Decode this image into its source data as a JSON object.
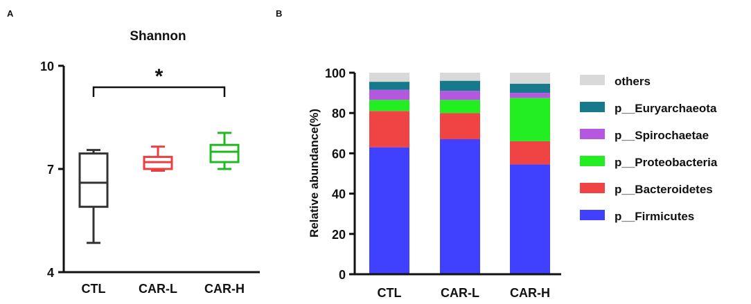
{
  "chart_data": [
    {
      "panel_label": "A",
      "type": "box",
      "title": "Shannon",
      "ylim": [
        4,
        10
      ],
      "y_ticks": [
        "4",
        "7",
        "10"
      ],
      "categories": [
        "CTL",
        "CAR-L",
        "CAR-H"
      ],
      "colors": [
        "#333333",
        "#e84040",
        "#22b822"
      ],
      "boxes": [
        {
          "min": 4.85,
          "q1": 5.9,
          "median": 6.6,
          "q3": 7.45,
          "max": 7.55
        },
        {
          "min": 6.95,
          "q1": 7.0,
          "median": 7.2,
          "q3": 7.35,
          "max": 7.65
        },
        {
          "min": 7.0,
          "q1": 7.2,
          "median": 7.5,
          "q3": 7.7,
          "max": 8.05
        }
      ],
      "significance": {
        "from": "CTL",
        "to": "CAR-H",
        "label": "*"
      }
    },
    {
      "panel_label": "B",
      "type": "stacked-bar",
      "ylabel": "Relative abundance(%)",
      "ylim": [
        0,
        100
      ],
      "y_ticks": [
        "0",
        "20",
        "40",
        "60",
        "80",
        "100"
      ],
      "categories": [
        "CTL",
        "CAR-L",
        "CAR-H"
      ],
      "series": [
        {
          "name": "p__Firmicutes",
          "color": "#4040ff",
          "values": [
            63,
            67,
            54.5
          ]
        },
        {
          "name": "p__Bacteroidetes",
          "color": "#f04444",
          "values": [
            18,
            13,
            11.5
          ]
        },
        {
          "name": "p__Proteobacteria",
          "color": "#22ee22",
          "values": [
            5.5,
            6.5,
            21.5
          ]
        },
        {
          "name": "p__Spirochaetae",
          "color": "#b458e0",
          "values": [
            5,
            4.5,
            2.5
          ]
        },
        {
          "name": "p__Euryarchaeota",
          "color": "#167a8c",
          "values": [
            4,
            5,
            4.5
          ]
        },
        {
          "name": "others",
          "color": "#d9d9d9",
          "values": [
            4.5,
            4,
            5.5
          ]
        }
      ],
      "legend_order": [
        "others",
        "p__Euryarchaeota",
        "p__Spirochaetae",
        "p__Proteobacteria",
        "p__Bacteroidetes",
        "p__Firmicutes"
      ]
    }
  ]
}
